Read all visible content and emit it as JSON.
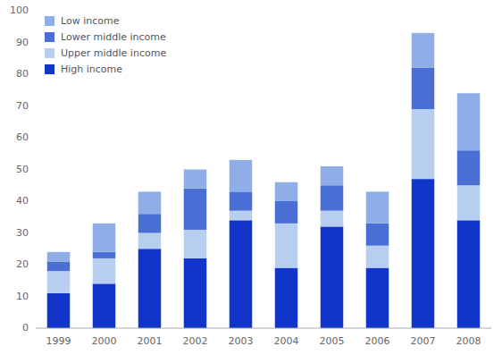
{
  "chart_data": {
    "type": "bar",
    "stacked": true,
    "grid": false,
    "legend": "upper left",
    "categories": [
      "1999",
      "2000",
      "2001",
      "2002",
      "2003",
      "2004",
      "2005",
      "2006",
      "2007",
      "2008"
    ],
    "series": [
      {
        "name": "High income",
        "color": "#1035c8",
        "values": [
          11,
          14,
          25,
          22,
          34,
          19,
          32,
          19,
          47,
          34
        ]
      },
      {
        "name": "Upper middle income",
        "color": "#b8cef0",
        "values": [
          7,
          8,
          5,
          9,
          3,
          14,
          5,
          7,
          22,
          11
        ]
      },
      {
        "name": "Lower middle income",
        "color": "#4a6fd4",
        "values": [
          3,
          2,
          6,
          13,
          6,
          7,
          8,
          7,
          13,
          11
        ]
      },
      {
        "name": "Low income",
        "color": "#8faee8",
        "values": [
          3,
          9,
          7,
          6,
          10,
          6,
          6,
          10,
          11,
          18
        ]
      }
    ],
    "ylim": [
      0,
      100
    ],
    "yticks": [
      0,
      10,
      20,
      30,
      40,
      50,
      60,
      70,
      80,
      90,
      100
    ]
  }
}
